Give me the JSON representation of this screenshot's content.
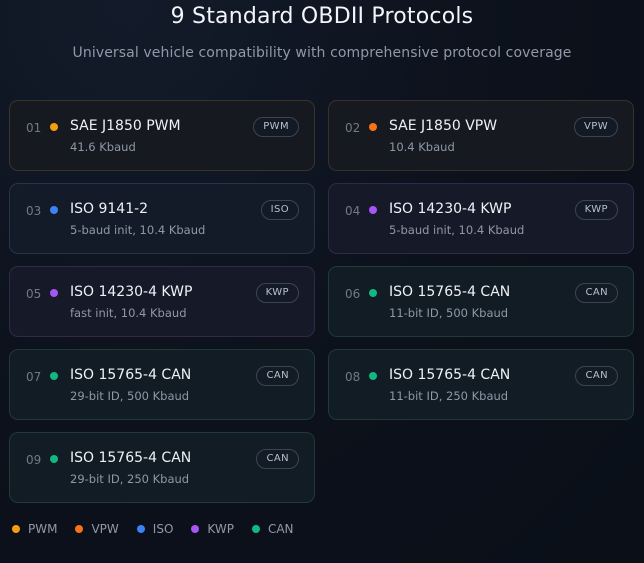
{
  "header": {
    "title": "9 Standard OBDII Protocols",
    "subtitle": "Universal vehicle compatibility with comprehensive protocol coverage"
  },
  "colors": {
    "PWM": "#f59e0b",
    "VPW": "#f97316",
    "ISO": "#3b82f6",
    "KWP": "#a855f7",
    "CAN": "#10b981"
  },
  "protocols": [
    {
      "num": "01",
      "name": "SAE J1850 PWM",
      "detail": "41.6 Kbaud",
      "tag": "PWM",
      "type": "PWM"
    },
    {
      "num": "02",
      "name": "SAE J1850 VPW",
      "detail": "10.4 Kbaud",
      "tag": "VPW",
      "type": "VPW"
    },
    {
      "num": "03",
      "name": "ISO 9141-2",
      "detail": "5-baud init, 10.4 Kbaud",
      "tag": "ISO",
      "type": "ISO"
    },
    {
      "num": "04",
      "name": "ISO 14230-4 KWP",
      "detail": "5-baud init, 10.4 Kbaud",
      "tag": "KWP",
      "type": "KWP"
    },
    {
      "num": "05",
      "name": "ISO 14230-4 KWP",
      "detail": "fast init, 10.4 Kbaud",
      "tag": "KWP",
      "type": "KWP"
    },
    {
      "num": "06",
      "name": "ISO 15765-4 CAN",
      "detail": "11-bit ID, 500 Kbaud",
      "tag": "CAN",
      "type": "CAN"
    },
    {
      "num": "07",
      "name": "ISO 15765-4 CAN",
      "detail": "29-bit ID, 500 Kbaud",
      "tag": "CAN",
      "type": "CAN"
    },
    {
      "num": "08",
      "name": "ISO 15765-4 CAN",
      "detail": "11-bit ID, 250 Kbaud",
      "tag": "CAN",
      "type": "CAN"
    },
    {
      "num": "09",
      "name": "ISO 15765-4 CAN",
      "detail": "29-bit ID, 250 Kbaud",
      "tag": "CAN",
      "type": "CAN"
    }
  ],
  "legend": [
    {
      "label": "PWM",
      "type": "PWM"
    },
    {
      "label": "VPW",
      "type": "VPW"
    },
    {
      "label": "ISO",
      "type": "ISO"
    },
    {
      "label": "KWP",
      "type": "KWP"
    },
    {
      "label": "CAN",
      "type": "CAN"
    }
  ]
}
